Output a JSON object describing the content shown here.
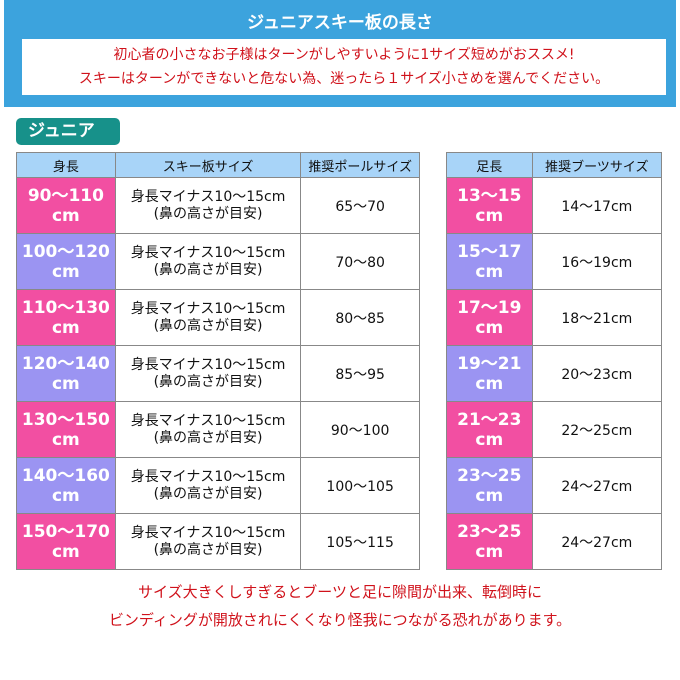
{
  "header": {
    "title": "ジュニアスキー板の長さ",
    "notice": [
      "初心者の小さなお子様はターンがしやすいように1サイズ短めがおススメ!",
      "スキーはターンができないと危ない為、迷ったら１サイズ小さめを選んでください。"
    ]
  },
  "badge": "ジュニア",
  "colors": {
    "banner": "#3ca3dd",
    "pink": "#f24fa2",
    "purple": "#9b94f2",
    "header": "#a8d4f8",
    "badge": "#17918a",
    "warn": "#d0121b"
  },
  "ski_table": {
    "headers": [
      "身長",
      "スキー板サイズ",
      "推奨ポールサイズ"
    ],
    "rows": [
      {
        "height": [
          "90～110",
          "cm"
        ],
        "ski": [
          "身長マイナス10～15cm",
          "(鼻の高さが目安)"
        ],
        "pole": "65～70",
        "color": "pink"
      },
      {
        "height": [
          "100～120",
          "cm"
        ],
        "ski": [
          "身長マイナス10～15cm",
          "(鼻の高さが目安)"
        ],
        "pole": "70～80",
        "color": "purple"
      },
      {
        "height": [
          "110～130",
          "cm"
        ],
        "ski": [
          "身長マイナス10～15cm",
          "(鼻の高さが目安)"
        ],
        "pole": "80～85",
        "color": "pink"
      },
      {
        "height": [
          "120～140",
          "cm"
        ],
        "ski": [
          "身長マイナス10～15cm",
          "(鼻の高さが目安)"
        ],
        "pole": "85～95",
        "color": "purple"
      },
      {
        "height": [
          "130～150",
          "cm"
        ],
        "ski": [
          "身長マイナス10～15cm",
          "(鼻の高さが目安)"
        ],
        "pole": "90～100",
        "color": "pink"
      },
      {
        "height": [
          "140～160",
          "cm"
        ],
        "ski": [
          "身長マイナス10～15cm",
          "(鼻の高さが目安)"
        ],
        "pole": "100～105",
        "color": "purple"
      },
      {
        "height": [
          "150～170",
          "cm"
        ],
        "ski": [
          "身長マイナス10～15cm",
          "(鼻の高さが目安)"
        ],
        "pole": "105～115",
        "color": "pink"
      }
    ]
  },
  "boot_table": {
    "headers": [
      "足長",
      "推奨ブーツサイズ"
    ],
    "rows": [
      {
        "foot": [
          "13～15",
          "cm"
        ],
        "boot": "14～17cm",
        "color": "pink"
      },
      {
        "foot": [
          "15～17",
          "cm"
        ],
        "boot": "16～19cm",
        "color": "purple"
      },
      {
        "foot": [
          "17～19",
          "cm"
        ],
        "boot": "18～21cm",
        "color": "pink"
      },
      {
        "foot": [
          "19～21",
          "cm"
        ],
        "boot": "20～23cm",
        "color": "purple"
      },
      {
        "foot": [
          "21～23",
          "cm"
        ],
        "boot": "22～25cm",
        "color": "pink"
      },
      {
        "foot": [
          "23～25",
          "cm"
        ],
        "boot": "24～27cm",
        "color": "purple"
      },
      {
        "foot": [
          "23～25",
          "cm"
        ],
        "boot": "24～27cm",
        "color": "pink"
      }
    ]
  },
  "warning": [
    "サイズ大きくしすぎるとブーツと足に隙間が出来、転倒時に",
    "ビンディングが開放されにくくなり怪我につながる恐れがあります。"
  ]
}
